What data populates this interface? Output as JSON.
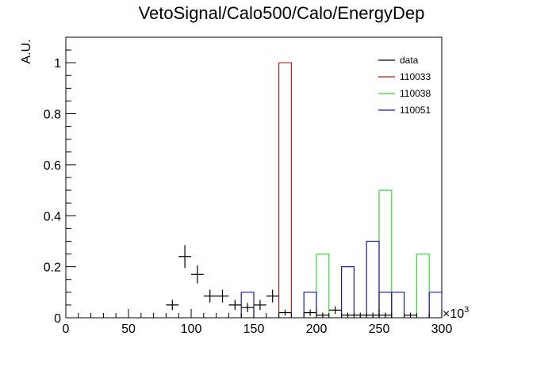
{
  "chart_data": {
    "type": "bar",
    "title": "VetoSignal/Calo500/Calo/EnergyDep",
    "xlabel": "",
    "ylabel": "A.U.",
    "xlim": [
      0,
      300000
    ],
    "ylim": [
      0,
      1.1
    ],
    "x_exponent_label": "×10",
    "x_exponent_power": "3",
    "x_ticks": [
      0,
      50,
      100,
      150,
      200,
      250,
      300
    ],
    "x_tick_labels": [
      "0",
      "50",
      "100",
      "150",
      "200",
      "250",
      "300"
    ],
    "y_ticks": [
      0,
      0.2,
      0.4,
      0.6,
      0.8,
      1.0
    ],
    "y_tick_labels": [
      "0",
      "0.2",
      "0.4",
      "0.6",
      "0.8",
      "1"
    ],
    "bin_width": 10000,
    "legend_position": "top-right",
    "series": [
      {
        "name": "data",
        "style": "errorbar",
        "color": "#000000",
        "points": [
          {
            "x": 85000,
            "y": 0.05,
            "err": 0.02
          },
          {
            "x": 95000,
            "y": 0.24,
            "err": 0.045
          },
          {
            "x": 105000,
            "y": 0.17,
            "err": 0.035
          },
          {
            "x": 115000,
            "y": 0.085,
            "err": 0.025
          },
          {
            "x": 125000,
            "y": 0.085,
            "err": 0.025
          },
          {
            "x": 135000,
            "y": 0.05,
            "err": 0.02
          },
          {
            "x": 145000,
            "y": 0.04,
            "err": 0.018
          },
          {
            "x": 155000,
            "y": 0.05,
            "err": 0.02
          },
          {
            "x": 165000,
            "y": 0.085,
            "err": 0.025
          },
          {
            "x": 175000,
            "y": 0.02,
            "err": 0.012
          },
          {
            "x": 195000,
            "y": 0.02,
            "err": 0.012
          },
          {
            "x": 205000,
            "y": 0.01,
            "err": 0.01
          },
          {
            "x": 215000,
            "y": 0.03,
            "err": 0.015
          },
          {
            "x": 225000,
            "y": 0.01,
            "err": 0.01
          },
          {
            "x": 235000,
            "y": 0.01,
            "err": 0.01
          },
          {
            "x": 245000,
            "y": 0.01,
            "err": 0.01
          },
          {
            "x": 255000,
            "y": 0.01,
            "err": 0.01
          },
          {
            "x": 275000,
            "y": 0.01,
            "err": 0.01
          }
        ]
      },
      {
        "name": "110033",
        "style": "step",
        "color": "#b22222",
        "bins": [
          {
            "x0": 170000,
            "x1": 180000,
            "y": 1.0
          }
        ]
      },
      {
        "name": "110038",
        "style": "step",
        "color": "#33dd33",
        "bins": [
          {
            "x0": 200000,
            "x1": 210000,
            "y": 0.25
          },
          {
            "x0": 250000,
            "x1": 260000,
            "y": 0.5
          },
          {
            "x0": 280000,
            "x1": 290000,
            "y": 0.25
          }
        ]
      },
      {
        "name": "110051",
        "style": "step",
        "color": "#1a1aaa",
        "bins": [
          {
            "x0": 140000,
            "x1": 150000,
            "y": 0.1
          },
          {
            "x0": 190000,
            "x1": 200000,
            "y": 0.1
          },
          {
            "x0": 220000,
            "x1": 230000,
            "y": 0.2
          },
          {
            "x0": 240000,
            "x1": 250000,
            "y": 0.3
          },
          {
            "x0": 250000,
            "x1": 260000,
            "y": 0.1
          },
          {
            "x0": 260000,
            "x1": 270000,
            "y": 0.1
          },
          {
            "x0": 290000,
            "x1": 300000,
            "y": 0.1
          }
        ]
      }
    ]
  }
}
